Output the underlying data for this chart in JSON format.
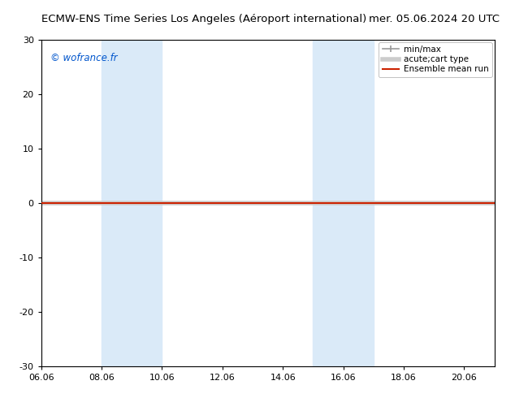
{
  "title_left": "ECMW-ENS Time Series Los Angeles (Aéroport international)",
  "title_right": "mer. 05.06.2024 20 UTC",
  "watermark": "© wofrance.fr",
  "watermark_color": "#0055cc",
  "ylim": [
    -30,
    30
  ],
  "yticks": [
    -30,
    -20,
    -10,
    0,
    10,
    20,
    30
  ],
  "xtick_labels": [
    "06.06",
    "08.06",
    "10.06",
    "12.06",
    "14.06",
    "16.06",
    "18.06",
    "20.06"
  ],
  "xtick_positions": [
    0,
    2,
    4,
    6,
    8,
    10,
    12,
    14
  ],
  "xlim": [
    0,
    15
  ],
  "shaded_bands": [
    {
      "start": 2,
      "end": 4
    },
    {
      "start": 9,
      "end": 11
    }
  ],
  "shaded_color": "#daeaf8",
  "ensemble_mean_color": "#cc2200",
  "minmax_color": "#999999",
  "acutecart_color": "#cccccc",
  "legend_labels": [
    "min/max",
    "acute;cart type",
    "Ensemble mean run"
  ],
  "bg_color": "#ffffff",
  "spine_color": "#000000",
  "font_size_title": 9.5,
  "font_size_ticks": 8,
  "font_size_legend": 7.5,
  "font_size_watermark": 8.5
}
